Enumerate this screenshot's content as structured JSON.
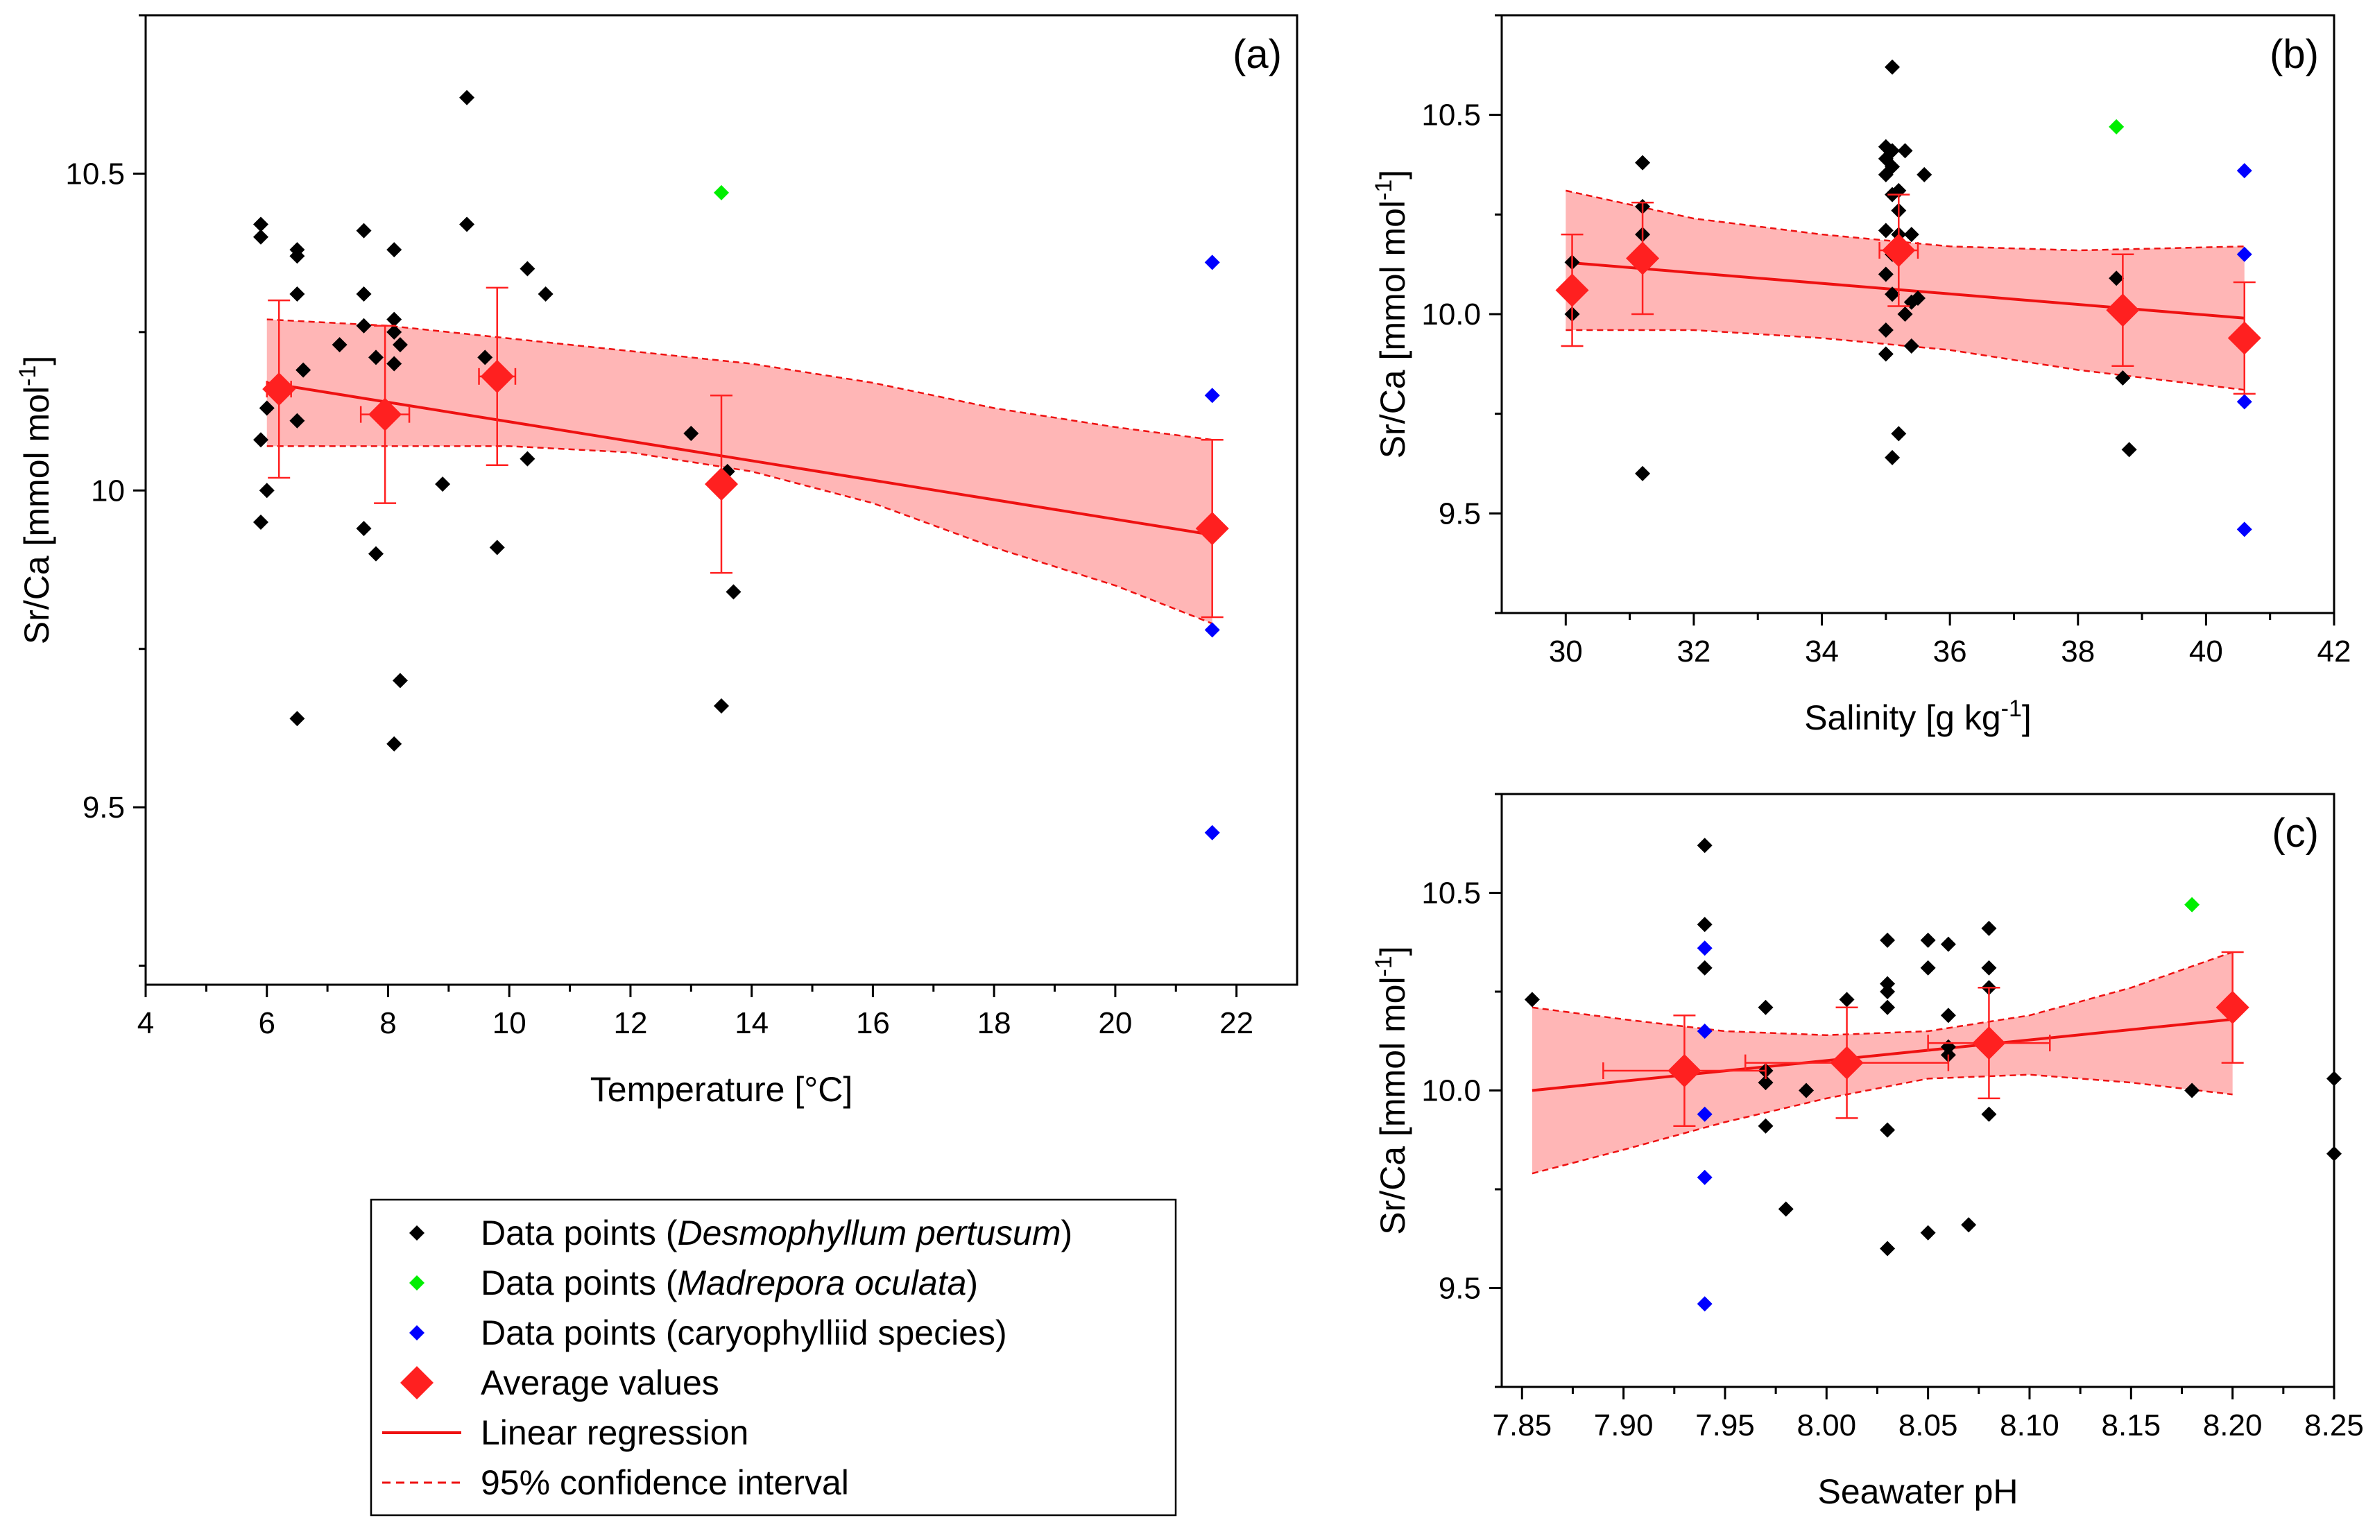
{
  "colors": {
    "desmophyllum": "#000000",
    "madrepora": "#00ee00",
    "caryophylliid": "#0000ff",
    "average": "#ff2020",
    "regression": "#ee1111",
    "ci_fill": "#ff9e9e",
    "axis": "#000000"
  },
  "legend": {
    "items": [
      {
        "key": "desmophyllum",
        "prefix": "Data points (",
        "italic": "Desmophyllum pertusum",
        "suffix": ")"
      },
      {
        "key": "madrepora",
        "prefix": "Data points (",
        "italic": "Madrepora oculata",
        "suffix": ")"
      },
      {
        "key": "caryophylliid",
        "prefix": "Data points (caryophylliid species)",
        "italic": "",
        "suffix": ""
      },
      {
        "key": "average",
        "prefix": "Average values",
        "italic": "",
        "suffix": ""
      },
      {
        "key": "regression",
        "prefix": "Linear regression",
        "italic": "",
        "suffix": ""
      },
      {
        "key": "ci",
        "prefix": "95% confidence interval",
        "italic": "",
        "suffix": ""
      }
    ]
  },
  "chart_data": [
    {
      "type": "scatter",
      "panel_label": "(a)",
      "xlabel": "Temperature [°C]",
      "ylabel": "Sr/Ca [mmol mol",
      "ylabel_sup": "-1",
      "ylabel_end": "]",
      "xlim": [
        4,
        23
      ],
      "ylim": [
        9.22,
        10.75
      ],
      "xticks": [
        {
          "v": 4,
          "l": "4"
        },
        {
          "v": 6,
          "l": "6"
        },
        {
          "v": 8,
          "l": "8"
        },
        {
          "v": 10,
          "l": "10"
        },
        {
          "v": 12,
          "l": "12"
        },
        {
          "v": 14,
          "l": "14"
        },
        {
          "v": 16,
          "l": "16"
        },
        {
          "v": 18,
          "l": "18"
        },
        {
          "v": 20,
          "l": "20"
        },
        {
          "v": 22,
          "l": "22"
        }
      ],
      "yticks": [
        {
          "v": 9.5,
          "l": "9.5"
        },
        {
          "v": 10,
          "l": "10"
        },
        {
          "v": 10.5,
          "l": "10.5"
        }
      ],
      "desmophyllum": [
        [
          5.9,
          10.42
        ],
        [
          5.9,
          10.4
        ],
        [
          6.0,
          10.13
        ],
        [
          5.9,
          10.08
        ],
        [
          6.0,
          10.0
        ],
        [
          5.9,
          9.95
        ],
        [
          6.5,
          10.38
        ],
        [
          6.5,
          10.37
        ],
        [
          6.5,
          10.31
        ],
        [
          6.6,
          10.19
        ],
        [
          6.5,
          10.11
        ],
        [
          6.5,
          9.64
        ],
        [
          7.2,
          10.23
        ],
        [
          7.6,
          10.41
        ],
        [
          7.6,
          10.31
        ],
        [
          7.6,
          10.26
        ],
        [
          7.8,
          10.21
        ],
        [
          7.6,
          9.94
        ],
        [
          7.8,
          9.9
        ],
        [
          8.1,
          10.38
        ],
        [
          8.1,
          10.27
        ],
        [
          8.1,
          10.25
        ],
        [
          8.2,
          10.23
        ],
        [
          8.1,
          10.2
        ],
        [
          8.2,
          9.7
        ],
        [
          8.1,
          9.6
        ],
        [
          8.9,
          10.01
        ],
        [
          9.3,
          10.62
        ],
        [
          9.3,
          10.42
        ],
        [
          9.6,
          10.21
        ],
        [
          10.3,
          10.35
        ],
        [
          10.6,
          10.31
        ],
        [
          10.3,
          10.05
        ],
        [
          9.8,
          9.91
        ],
        [
          13.0,
          10.09
        ],
        [
          13.6,
          10.03
        ],
        [
          13.5,
          10.0
        ],
        [
          13.7,
          9.84
        ],
        [
          13.5,
          9.66
        ]
      ],
      "madrepora": [
        [
          13.5,
          10.47
        ]
      ],
      "caryophylliid": [
        [
          21.6,
          10.36
        ],
        [
          21.6,
          10.15
        ],
        [
          21.6,
          9.78
        ],
        [
          21.6,
          9.46
        ]
      ],
      "averages": [
        {
          "x": 6.2,
          "y": 10.16,
          "yerr": 0.14,
          "xerr": 0.2
        },
        {
          "x": 7.95,
          "y": 10.12,
          "yerr": 0.14,
          "xerr": 0.4
        },
        {
          "x": 9.8,
          "y": 10.18,
          "yerr": 0.14,
          "xerr": 0.3
        },
        {
          "x": 13.5,
          "y": 10.01,
          "yerr": 0.14,
          "xerr": 0.0
        },
        {
          "x": 21.6,
          "y": 9.94,
          "yerr": 0.14,
          "xerr": 0.0
        }
      ],
      "regression": {
        "x": [
          6.0,
          21.6
        ],
        "y": [
          10.17,
          9.93
        ]
      },
      "ci_upper": [
        [
          6.0,
          10.27
        ],
        [
          8.0,
          10.26
        ],
        [
          10.0,
          10.24
        ],
        [
          12.0,
          10.22
        ],
        [
          14.0,
          10.2
        ],
        [
          16.0,
          10.17
        ],
        [
          18.0,
          10.13
        ],
        [
          20.0,
          10.1
        ],
        [
          21.6,
          10.08
        ]
      ],
      "ci_lower": [
        [
          6.0,
          10.07
        ],
        [
          8.0,
          10.07
        ],
        [
          10.0,
          10.07
        ],
        [
          12.0,
          10.06
        ],
        [
          14.0,
          10.03
        ],
        [
          16.0,
          9.98
        ],
        [
          18.0,
          9.91
        ],
        [
          20.0,
          9.85
        ],
        [
          21.6,
          9.79
        ]
      ]
    },
    {
      "type": "scatter",
      "panel_label": "(b)",
      "xlabel": "Salinity [g kg",
      "xlabel_sup": "-1",
      "xlabel_end": "]",
      "ylabel": "Sr/Ca [mmol mol",
      "ylabel_sup": "-1",
      "ylabel_end": "]",
      "xlim": [
        29,
        42
      ],
      "ylim": [
        9.25,
        10.75
      ],
      "xticks": [
        {
          "v": 30,
          "l": "30"
        },
        {
          "v": 32,
          "l": "32"
        },
        {
          "v": 34,
          "l": "34"
        },
        {
          "v": 36,
          "l": "36"
        },
        {
          "v": 38,
          "l": "38"
        },
        {
          "v": 40,
          "l": "40"
        },
        {
          "v": 42,
          "l": "42"
        }
      ],
      "yticks": [
        {
          "v": 9.5,
          "l": "9.5"
        },
        {
          "v": 10,
          "l": "10.0"
        },
        {
          "v": 10.5,
          "l": "10.5"
        }
      ],
      "desmophyllum": [
        [
          30.1,
          10.13
        ],
        [
          30.1,
          10.0
        ],
        [
          31.2,
          10.38
        ],
        [
          31.2,
          10.27
        ],
        [
          31.2,
          10.2
        ],
        [
          31.2,
          9.6
        ],
        [
          35.0,
          10.42
        ],
        [
          35.1,
          10.41
        ],
        [
          35.0,
          10.39
        ],
        [
          35.1,
          10.37
        ],
        [
          35.0,
          10.35
        ],
        [
          35.1,
          10.3
        ],
        [
          35.0,
          10.21
        ],
        [
          35.1,
          10.15
        ],
        [
          35.0,
          10.1
        ],
        [
          35.1,
          10.05
        ],
        [
          35.0,
          9.96
        ],
        [
          35.0,
          9.9
        ],
        [
          35.1,
          9.64
        ],
        [
          35.1,
          10.62
        ],
        [
          35.2,
          10.31
        ],
        [
          35.3,
          10.41
        ],
        [
          35.2,
          10.26
        ],
        [
          35.2,
          10.2
        ],
        [
          35.2,
          9.7
        ],
        [
          35.3,
          10.0
        ],
        [
          35.4,
          10.2
        ],
        [
          35.4,
          10.03
        ],
        [
          35.4,
          9.92
        ],
        [
          35.6,
          10.35
        ],
        [
          35.5,
          10.04
        ],
        [
          38.6,
          10.09
        ],
        [
          38.7,
          9.84
        ],
        [
          38.8,
          9.66
        ]
      ],
      "madrepora": [
        [
          38.6,
          10.47
        ]
      ],
      "caryophylliid": [
        [
          40.6,
          10.36
        ],
        [
          40.6,
          10.15
        ],
        [
          40.6,
          9.78
        ],
        [
          40.6,
          9.46
        ]
      ],
      "averages": [
        {
          "x": 30.1,
          "y": 10.06,
          "yerr": 0.14,
          "xerr": 0.0
        },
        {
          "x": 31.2,
          "y": 10.14,
          "yerr": 0.14,
          "xerr": 0.0
        },
        {
          "x": 35.2,
          "y": 10.16,
          "yerr": 0.14,
          "xerr": 0.3
        },
        {
          "x": 38.7,
          "y": 10.01,
          "yerr": 0.14,
          "xerr": 0.0
        },
        {
          "x": 40.6,
          "y": 9.94,
          "yerr": 0.14,
          "xerr": 0.0
        }
      ],
      "regression": {
        "x": [
          30.0,
          40.6
        ],
        "y": [
          10.13,
          9.99
        ]
      },
      "ci_upper": [
        [
          30.0,
          10.31
        ],
        [
          32.0,
          10.24
        ],
        [
          34.0,
          10.2
        ],
        [
          36.0,
          10.17
        ],
        [
          38.0,
          10.16
        ],
        [
          40.6,
          10.17
        ]
      ],
      "ci_lower": [
        [
          30.0,
          9.96
        ],
        [
          32.0,
          9.96
        ],
        [
          34.0,
          9.94
        ],
        [
          36.0,
          9.91
        ],
        [
          38.0,
          9.86
        ],
        [
          40.6,
          9.81
        ]
      ]
    },
    {
      "type": "scatter",
      "panel_label": "(c)",
      "xlabel": "Seawater pH",
      "ylabel": "Sr/Ca [mmol mol",
      "ylabel_sup": "-1",
      "ylabel_end": "]",
      "xlim": [
        7.84,
        8.25
      ],
      "ylim": [
        9.25,
        10.75
      ],
      "xticks": [
        {
          "v": 7.85,
          "l": "7.85"
        },
        {
          "v": 7.9,
          "l": "7.90"
        },
        {
          "v": 7.95,
          "l": "7.95"
        },
        {
          "v": 8.0,
          "l": "8.00"
        },
        {
          "v": 8.05,
          "l": "8.05"
        },
        {
          "v": 8.1,
          "l": "8.10"
        },
        {
          "v": 8.15,
          "l": "8.15"
        },
        {
          "v": 8.2,
          "l": "8.20"
        },
        {
          "v": 8.25,
          "l": "8.25"
        }
      ],
      "yticks": [
        {
          "v": 9.5,
          "l": "9.5"
        },
        {
          "v": 10,
          "l": "10.0"
        },
        {
          "v": 10.5,
          "l": "10.5"
        }
      ],
      "desmophyllum": [
        [
          7.855,
          10.23
        ],
        [
          7.94,
          10.62
        ],
        [
          7.94,
          10.42
        ],
        [
          7.94,
          10.31
        ],
        [
          7.97,
          10.21
        ],
        [
          7.97,
          10.05
        ],
        [
          7.97,
          10.02
        ],
        [
          7.97,
          9.91
        ],
        [
          7.98,
          9.7
        ],
        [
          7.99,
          10.0
        ],
        [
          8.01,
          10.23
        ],
        [
          8.03,
          10.38
        ],
        [
          8.03,
          10.27
        ],
        [
          8.03,
          10.25
        ],
        [
          8.03,
          10.21
        ],
        [
          8.03,
          9.9
        ],
        [
          8.03,
          9.6
        ],
        [
          8.05,
          10.38
        ],
        [
          8.05,
          10.31
        ],
        [
          8.05,
          9.64
        ],
        [
          8.06,
          10.37
        ],
        [
          8.06,
          10.19
        ],
        [
          8.06,
          10.11
        ],
        [
          8.06,
          10.09
        ],
        [
          8.07,
          9.66
        ],
        [
          8.08,
          10.41
        ],
        [
          8.08,
          10.31
        ],
        [
          8.08,
          10.26
        ],
        [
          8.08,
          9.94
        ],
        [
          8.18,
          10.0
        ],
        [
          8.25,
          10.03
        ],
        [
          8.25,
          9.84
        ]
      ],
      "madrepora": [
        [
          8.18,
          10.47
        ]
      ],
      "caryophylliid": [
        [
          7.94,
          10.36
        ],
        [
          7.94,
          10.15
        ],
        [
          7.94,
          9.94
        ],
        [
          7.94,
          9.78
        ],
        [
          7.94,
          9.46
        ]
      ],
      "averages": [
        {
          "x": 7.93,
          "y": 10.05,
          "yerr": 0.14,
          "xerr": 0.04
        },
        {
          "x": 8.01,
          "y": 10.07,
          "yerr": 0.14,
          "xerr": 0.05
        },
        {
          "x": 8.08,
          "y": 10.12,
          "yerr": 0.14,
          "xerr": 0.03
        },
        {
          "x": 8.2,
          "y": 10.21,
          "yerr": 0.14,
          "xerr": 0.0
        }
      ],
      "regression": {
        "x": [
          7.855,
          8.2
        ],
        "y": [
          10.0,
          10.18
        ]
      },
      "ci_upper": [
        [
          7.855,
          10.21
        ],
        [
          7.9,
          10.18
        ],
        [
          7.95,
          10.15
        ],
        [
          8.0,
          10.14
        ],
        [
          8.05,
          10.15
        ],
        [
          8.1,
          10.19
        ],
        [
          8.15,
          10.26
        ],
        [
          8.2,
          10.35
        ]
      ],
      "ci_lower": [
        [
          7.855,
          9.79
        ],
        [
          7.9,
          9.85
        ],
        [
          7.95,
          9.92
        ],
        [
          8.0,
          9.98
        ],
        [
          8.05,
          10.03
        ],
        [
          8.1,
          10.04
        ],
        [
          8.15,
          10.02
        ],
        [
          8.2,
          9.99
        ]
      ]
    }
  ]
}
